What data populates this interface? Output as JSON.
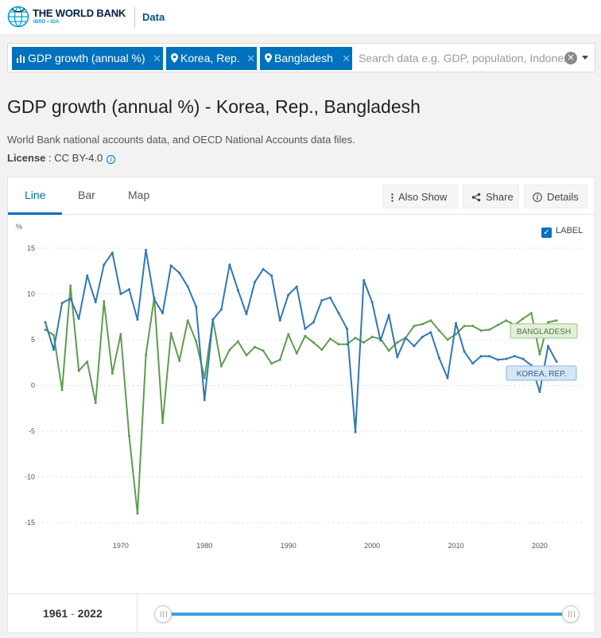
{
  "header": {
    "brand_title": "THE WORLD BANK",
    "brand_sub": "IBRD • IDA",
    "section": "Data"
  },
  "search": {
    "tags": [
      {
        "label": "GDP growth (annual %)",
        "icon": "bar-chart-icon"
      },
      {
        "label": "Korea, Rep.",
        "icon": "location-pin-icon"
      },
      {
        "label": "Bangladesh",
        "icon": "location-pin-icon"
      }
    ],
    "placeholder": "Search data e.g. GDP, population, Indonesia"
  },
  "page": {
    "title": "GDP growth (annual %) - Korea, Rep., Bangladesh",
    "source": "World Bank national accounts data, and OECD National Accounts data files.",
    "license_label": "License",
    "license_value": "CC BY-4.0"
  },
  "tabs": [
    {
      "label": "Line",
      "active": true
    },
    {
      "label": "Bar",
      "active": false
    },
    {
      "label": "Map",
      "active": false
    }
  ],
  "toolbar": {
    "also_show": "Also Show",
    "share": "Share",
    "details": "Details"
  },
  "label_toggle": {
    "label": "LABEL",
    "checked": true
  },
  "range": {
    "start": "1961",
    "end": "2022"
  },
  "colors": {
    "korea": "#2f77b5",
    "bangladesh": "#5f9c4e",
    "brand": "#0071bc"
  },
  "chart_data": {
    "type": "line",
    "title": "GDP growth (annual %) - Korea, Rep., Bangladesh",
    "ylabel": "%",
    "xlabel": "",
    "x": [
      1961,
      1962,
      1963,
      1964,
      1965,
      1966,
      1967,
      1968,
      1969,
      1970,
      1971,
      1972,
      1973,
      1974,
      1975,
      1976,
      1977,
      1978,
      1979,
      1980,
      1981,
      1982,
      1983,
      1984,
      1985,
      1986,
      1987,
      1988,
      1989,
      1990,
      1991,
      1992,
      1993,
      1994,
      1995,
      1996,
      1997,
      1998,
      1999,
      2000,
      2001,
      2002,
      2003,
      2004,
      2005,
      2006,
      2007,
      2008,
      2009,
      2010,
      2011,
      2012,
      2013,
      2014,
      2015,
      2016,
      2017,
      2018,
      2019,
      2020,
      2021,
      2022
    ],
    "series": [
      {
        "name": "Korea, Rep.",
        "label": "KOREA, REP.",
        "style": "solid",
        "values": [
          6.9,
          3.9,
          9.0,
          9.5,
          7.3,
          12.0,
          9.1,
          13.2,
          14.5,
          10.0,
          10.5,
          7.2,
          14.8,
          9.4,
          7.9,
          13.1,
          12.3,
          10.8,
          8.6,
          -1.6,
          7.2,
          8.3,
          13.2,
          10.4,
          7.8,
          11.3,
          12.7,
          12.0,
          7.1,
          9.9,
          10.8,
          6.2,
          6.9,
          9.3,
          9.6,
          7.9,
          6.2,
          -5.1,
          11.5,
          9.1,
          4.9,
          7.7,
          3.1,
          5.2,
          4.3,
          5.3,
          5.8,
          3.0,
          0.8,
          6.8,
          3.7,
          2.4,
          3.2,
          3.2,
          2.8,
          2.9,
          3.2,
          2.9,
          2.2,
          -0.7,
          4.3,
          2.6
        ]
      },
      {
        "name": "Bangladesh",
        "label": "BANGLADESH",
        "style": "dashed",
        "values": [
          6.1,
          5.5,
          -0.5,
          10.9,
          1.6,
          2.6,
          -1.9,
          9.2,
          1.3,
          5.6,
          -5.5,
          -14.0,
          3.3,
          9.6,
          -4.1,
          5.7,
          2.7,
          7.1,
          4.8,
          0.8,
          7.2,
          2.1,
          3.9,
          4.8,
          3.3,
          4.2,
          3.8,
          2.4,
          2.8,
          5.6,
          3.5,
          5.4,
          4.7,
          3.9,
          5.1,
          4.5,
          4.5,
          5.2,
          4.7,
          5.3,
          5.1,
          3.8,
          4.7,
          5.2,
          6.5,
          6.7,
          7.1,
          6.0,
          5.0,
          5.6,
          6.5,
          6.5,
          6.0,
          6.1,
          6.6,
          7.1,
          6.6,
          7.3,
          7.9,
          3.4,
          6.9,
          7.1
        ]
      }
    ],
    "yticks": [
      15,
      10,
      5,
      0,
      -5,
      -10,
      -15
    ],
    "xticks": [
      1970,
      1980,
      1990,
      2000,
      2010,
      2020
    ],
    "ylim": [
      -15,
      15
    ],
    "grid": true,
    "legend": "inline-labels-right"
  }
}
